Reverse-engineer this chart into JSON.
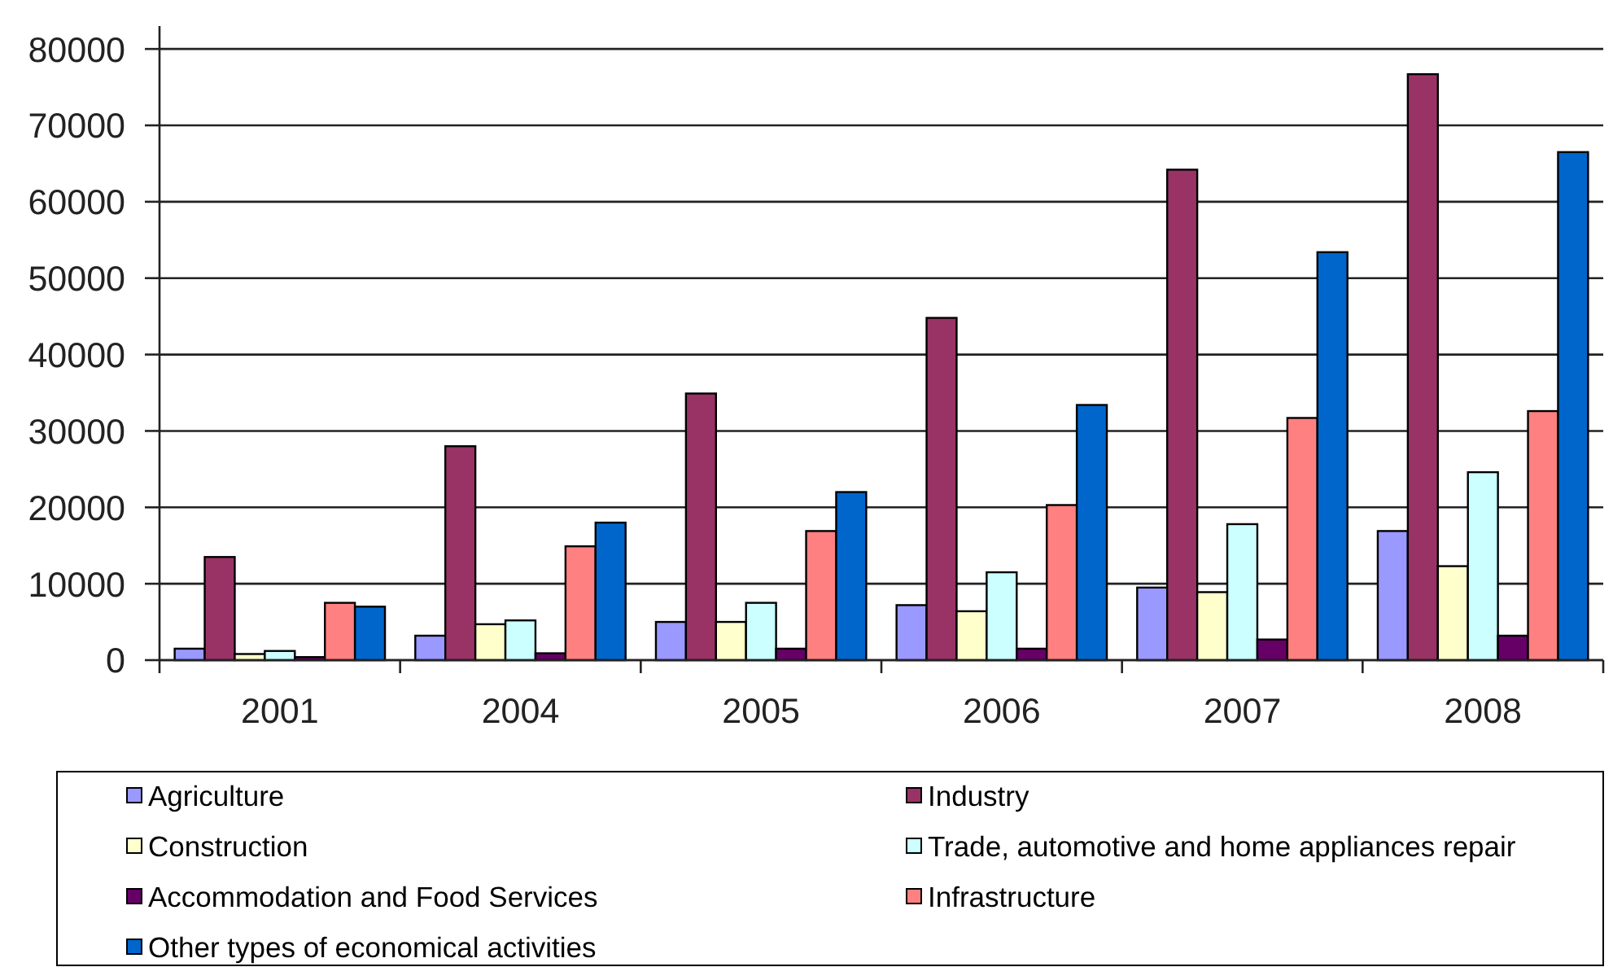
{
  "chart_data": {
    "type": "bar",
    "categories": [
      "2001",
      "2004",
      "2005",
      "2006",
      "2007",
      "2008"
    ],
    "series": [
      {
        "name": "Agriculture",
        "color": "#9999ff",
        "values": [
          1500,
          3200,
          5000,
          7200,
          9500,
          16900
        ]
      },
      {
        "name": "Industry",
        "color": "#993366",
        "values": [
          13500,
          28000,
          34900,
          44800,
          64200,
          76700
        ]
      },
      {
        "name": "Construction",
        "color": "#ffffcc",
        "values": [
          800,
          4700,
          5000,
          6400,
          8900,
          12300
        ]
      },
      {
        "name": "Trade, automotive and home appliances repair",
        "color": "#ccffff",
        "values": [
          1200,
          5200,
          7500,
          11500,
          17800,
          24600
        ]
      },
      {
        "name": "Accommodation and Food Services",
        "color": "#660066",
        "values": [
          400,
          900,
          1500,
          1500,
          2700,
          3200
        ]
      },
      {
        "name": "Infrastructure",
        "color": "#ff8080",
        "values": [
          7500,
          14900,
          16900,
          20300,
          31700,
          32600
        ]
      },
      {
        "name": "Other types of economical activities",
        "color": "#0066cc",
        "values": [
          7000,
          18000,
          22000,
          33400,
          53400,
          66500
        ]
      }
    ],
    "ylim": [
      0,
      83000
    ],
    "yticks": [
      0,
      10000,
      20000,
      30000,
      40000,
      50000,
      60000,
      70000,
      80000
    ],
    "grid": "y",
    "legend": "bottom"
  }
}
